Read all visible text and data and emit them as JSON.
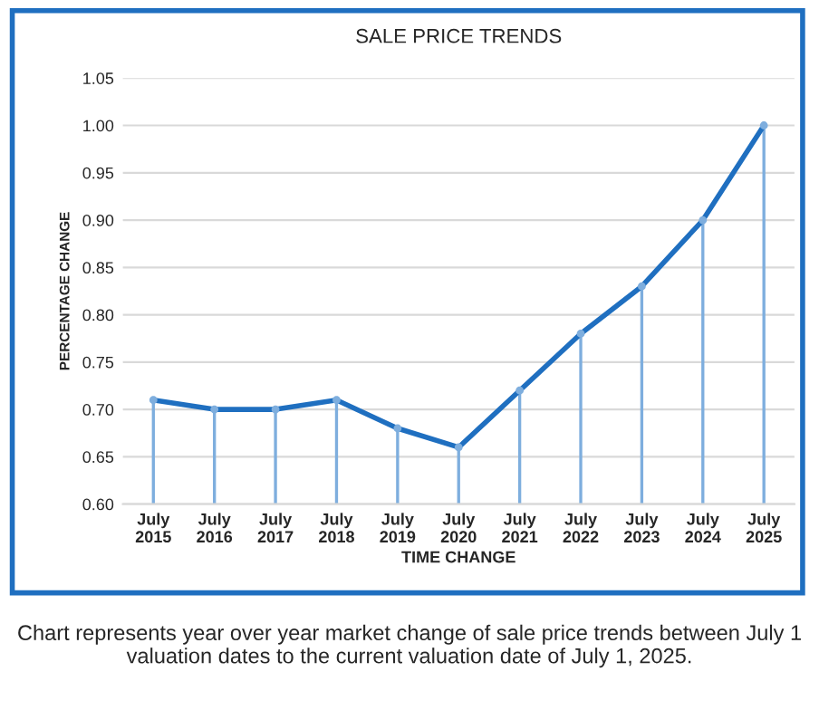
{
  "chart_data": {
    "type": "line",
    "title": "SALE PRICE TRENDS",
    "xlabel": "TIME CHANGE",
    "ylabel": "PERCENTAGE CHANGE",
    "categories": [
      "July\n2015",
      "July\n2016",
      "July\n2017",
      "July\n2018",
      "July\n2019",
      "July\n2020",
      "July\n2021",
      "July\n2022",
      "July\n2023",
      "July\n2024",
      "July\n2025"
    ],
    "series": [
      {
        "type": "lollipop",
        "marker": "circle",
        "color": "#7eaede",
        "values": [
          0.71,
          0.7,
          0.7,
          0.71,
          0.68,
          0.66,
          0.72,
          0.78,
          0.83,
          0.9,
          1.0
        ]
      },
      {
        "color": "#1f6fc0",
        "values": [
          0.71,
          0.7,
          0.7,
          0.71,
          0.68,
          0.66,
          0.72,
          0.78,
          0.83,
          0.9,
          1.0
        ]
      }
    ],
    "ylim": [
      0.6,
      1.05
    ],
    "yticks": [
      {
        "value": 0.6,
        "label": "0.60"
      },
      {
        "value": 0.65,
        "label": "0.65"
      },
      {
        "value": 0.7,
        "label": "0.70"
      },
      {
        "value": 0.75,
        "label": "0.75"
      },
      {
        "value": 0.8,
        "label": "0.80"
      },
      {
        "value": 0.85,
        "label": "0.85"
      },
      {
        "value": 0.9,
        "label": "0.90"
      },
      {
        "value": 0.95,
        "label": "0.95"
      },
      {
        "value": 1.0,
        "label": "1.00"
      },
      {
        "value": 1.05,
        "label": "1.05"
      }
    ],
    "grid": "y",
    "line_style": "solid",
    "annotations": [
      "Chart represents year over year market change of sale price trends between July 1 valuation dates to the current valuation date of July 1, 2025."
    ]
  }
}
